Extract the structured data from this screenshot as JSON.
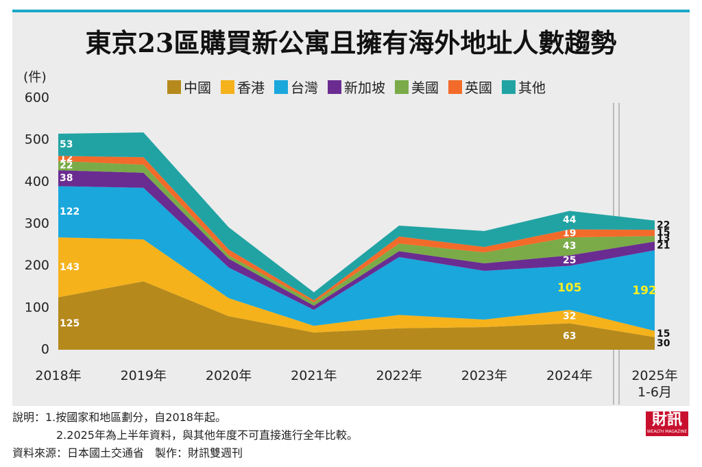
{
  "chart_data": {
    "type": "stacked_area",
    "title": "東京23區購買新公寓且擁有海外地址人數趨勢",
    "y_axis_label": "(件)",
    "categories": [
      "2018年",
      "2019年",
      "2020年",
      "2021年",
      "2022年",
      "2023年",
      "2024年",
      "2025年\n1-6月"
    ],
    "series": [
      {
        "name": "中國",
        "color": "#b5891c",
        "values": [
          125,
          163,
          80,
          41,
          51,
          54,
          63,
          30
        ]
      },
      {
        "name": "香港",
        "color": "#f5b21b",
        "values": [
          143,
          100,
          43,
          16,
          32,
          18,
          32,
          15
        ]
      },
      {
        "name": "台灣",
        "color": "#1aa7dc",
        "values": [
          122,
          123,
          73,
          38,
          138,
          116,
          105,
          192
        ]
      },
      {
        "name": "新加坡",
        "color": "#6a2c91",
        "values": [
          38,
          36,
          21,
          10,
          14,
          18,
          25,
          21
        ]
      },
      {
        "name": "美國",
        "color": "#7aab48",
        "values": [
          22,
          19,
          8,
          8,
          18,
          26,
          43,
          13
        ]
      },
      {
        "name": "英國",
        "color": "#f26b2a",
        "values": [
          12,
          18,
          14,
          5,
          17,
          13,
          19,
          15
        ]
      },
      {
        "name": "其他",
        "color": "#22a3a3",
        "values": [
          53,
          59,
          53,
          19,
          26,
          38,
          44,
          22
        ]
      }
    ],
    "data_labels": [
      0,
      6,
      7
    ],
    "ylim": [
      0,
      600
    ],
    "yticks": [
      0,
      100,
      200,
      300,
      400,
      500,
      600
    ]
  },
  "notes": [
    "說明：1.按國家和地區劃分，自2018年起。",
    "2.2025年為上半年資料，與其他年度不可直接進行全年比較。",
    "資料來源：日本國土交通省　製作：財訊雙週刊"
  ],
  "logo": {
    "title": "財訊",
    "subtitle": "WEALTH MAGAZINE"
  }
}
